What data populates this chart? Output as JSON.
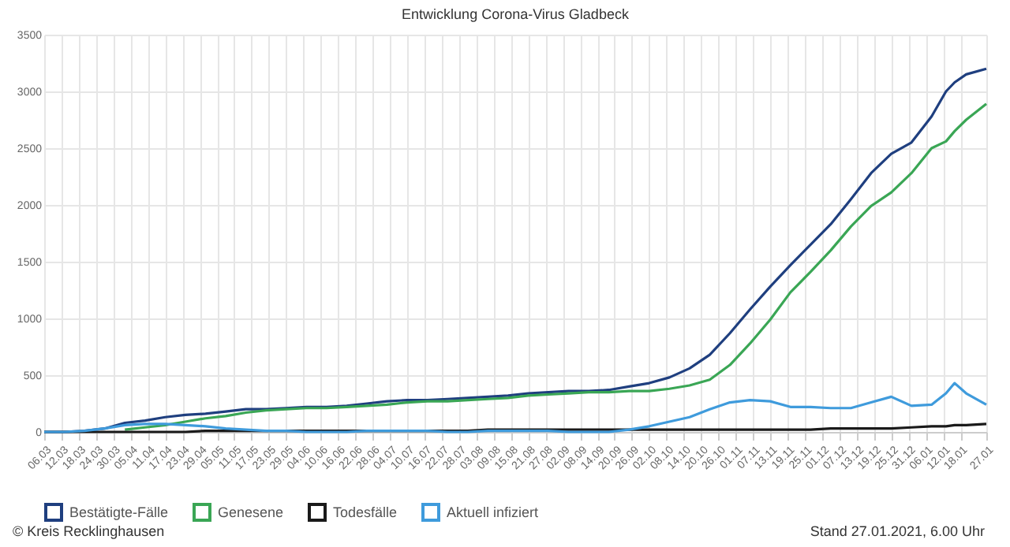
{
  "chart_data": {
    "type": "line",
    "title": "Entwicklung Corona-Virus Gladbeck",
    "annotations": [
      "© Kreis Recklinghausen",
      "Stand 27.01.2021, 6.00 Uhr"
    ],
    "x": [
      "2020-03-06",
      "2020-03-13",
      "2020-03-20",
      "2020-03-27",
      "2020-04-03",
      "2020-04-10",
      "2020-04-17",
      "2020-04-24",
      "2020-05-01",
      "2020-05-08",
      "2020-05-15",
      "2020-05-22",
      "2020-05-29",
      "2020-06-05",
      "2020-06-12",
      "2020-06-19",
      "2020-06-26",
      "2020-07-03",
      "2020-07-10",
      "2020-07-17",
      "2020-07-24",
      "2020-07-31",
      "2020-08-07",
      "2020-08-14",
      "2020-08-21",
      "2020-08-28",
      "2020-09-04",
      "2020-09-11",
      "2020-09-18",
      "2020-09-25",
      "2020-10-02",
      "2020-10-09",
      "2020-10-16",
      "2020-10-23",
      "2020-10-30",
      "2020-11-06",
      "2020-11-13",
      "2020-11-20",
      "2020-11-27",
      "2020-12-04",
      "2020-12-11",
      "2020-12-18",
      "2020-12-25",
      "2021-01-01",
      "2021-01-08",
      "2021-01-13",
      "2021-01-16",
      "2021-01-20",
      "2021-01-27"
    ],
    "series": [
      {
        "name": "Bestätigte-Fälle",
        "color": "#1f3f7f",
        "values": [
          0,
          0,
          10,
          30,
          80,
          100,
          130,
          150,
          160,
          180,
          200,
          200,
          210,
          220,
          220,
          230,
          250,
          270,
          280,
          280,
          290,
          300,
          310,
          320,
          340,
          350,
          360,
          360,
          370,
          400,
          430,
          480,
          560,
          680,
          870,
          1080,
          1280,
          1470,
          1650,
          1830,
          2050,
          2280,
          2450,
          2550,
          2780,
          3000,
          3080,
          3150,
          3200
        ]
      },
      {
        "name": "Genesene",
        "color": "#3aa655",
        "values": [
          null,
          null,
          null,
          null,
          20,
          40,
          60,
          90,
          120,
          140,
          170,
          190,
          200,
          210,
          210,
          220,
          230,
          240,
          260,
          270,
          270,
          280,
          290,
          300,
          320,
          330,
          340,
          350,
          350,
          360,
          360,
          380,
          410,
          460,
          590,
          780,
          990,
          1230,
          1410,
          1600,
          1810,
          1990,
          2110,
          2280,
          2500,
          2560,
          2650,
          2750,
          2890
        ]
      },
      {
        "name": "Todesfälle",
        "color": "#1a1a1a",
        "values": [
          0,
          0,
          0,
          0,
          0,
          0,
          0,
          0,
          10,
          10,
          10,
          10,
          10,
          10,
          10,
          10,
          10,
          10,
          10,
          10,
          10,
          10,
          20,
          20,
          20,
          20,
          20,
          20,
          20,
          20,
          20,
          20,
          20,
          20,
          20,
          20,
          20,
          20,
          20,
          30,
          30,
          30,
          30,
          40,
          50,
          50,
          60,
          60,
          70
        ]
      },
      {
        "name": "Aktuell infiziert",
        "color": "#3f9bdc",
        "values": [
          0,
          0,
          10,
          30,
          60,
          70,
          70,
          60,
          50,
          30,
          20,
          10,
          10,
          0,
          0,
          0,
          10,
          10,
          10,
          10,
          0,
          0,
          10,
          10,
          10,
          10,
          0,
          0,
          0,
          20,
          50,
          90,
          130,
          200,
          260,
          280,
          270,
          220,
          220,
          210,
          210,
          260,
          310,
          230,
          240,
          340,
          430,
          340,
          240
        ]
      }
    ],
    "xlim": [
      "2020-03-06",
      "2021-01-27"
    ],
    "xticks": [
      {
        "value": "2020-03-06",
        "label": "06.03"
      },
      {
        "value": "2020-03-12",
        "label": "12.03"
      },
      {
        "value": "2020-03-18",
        "label": "18.03"
      },
      {
        "value": "2020-03-24",
        "label": "24.03"
      },
      {
        "value": "2020-03-30",
        "label": "30.03"
      },
      {
        "value": "2020-04-05",
        "label": "05.04"
      },
      {
        "value": "2020-04-11",
        "label": "11.04"
      },
      {
        "value": "2020-04-17",
        "label": "17.04"
      },
      {
        "value": "2020-04-23",
        "label": "23.04"
      },
      {
        "value": "2020-04-29",
        "label": "29.04"
      },
      {
        "value": "2020-05-05",
        "label": "05.05"
      },
      {
        "value": "2020-05-11",
        "label": "11.05"
      },
      {
        "value": "2020-05-17",
        "label": "17.05"
      },
      {
        "value": "2020-05-23",
        "label": "23.05"
      },
      {
        "value": "2020-05-29",
        "label": "29.05"
      },
      {
        "value": "2020-06-04",
        "label": "04.06"
      },
      {
        "value": "2020-06-10",
        "label": "10.06"
      },
      {
        "value": "2020-06-16",
        "label": "16.06"
      },
      {
        "value": "2020-06-22",
        "label": "22.06"
      },
      {
        "value": "2020-06-28",
        "label": "28.06"
      },
      {
        "value": "2020-07-04",
        "label": "04.07"
      },
      {
        "value": "2020-07-10",
        "label": "10.07"
      },
      {
        "value": "2020-07-16",
        "label": "16.07"
      },
      {
        "value": "2020-07-22",
        "label": "22.07"
      },
      {
        "value": "2020-07-28",
        "label": "28.07"
      },
      {
        "value": "2020-08-03",
        "label": "03.08"
      },
      {
        "value": "2020-08-09",
        "label": "09.08"
      },
      {
        "value": "2020-08-15",
        "label": "15.08"
      },
      {
        "value": "2020-08-21",
        "label": "21.08"
      },
      {
        "value": "2020-08-27",
        "label": "27.08"
      },
      {
        "value": "2020-09-02",
        "label": "02.09"
      },
      {
        "value": "2020-09-08",
        "label": "08.09"
      },
      {
        "value": "2020-09-14",
        "label": "14.09"
      },
      {
        "value": "2020-09-20",
        "label": "20.09"
      },
      {
        "value": "2020-09-26",
        "label": "26.09"
      },
      {
        "value": "2020-10-02",
        "label": "02.10"
      },
      {
        "value": "2020-10-08",
        "label": "08.10"
      },
      {
        "value": "2020-10-14",
        "label": "14.10"
      },
      {
        "value": "2020-10-20",
        "label": "20.10"
      },
      {
        "value": "2020-10-26",
        "label": "26.10"
      },
      {
        "value": "2020-11-01",
        "label": "01.11"
      },
      {
        "value": "2020-11-07",
        "label": "07.11"
      },
      {
        "value": "2020-11-13",
        "label": "13.11"
      },
      {
        "value": "2020-11-19",
        "label": "19.11"
      },
      {
        "value": "2020-11-25",
        "label": "25.11"
      },
      {
        "value": "2020-12-01",
        "label": "01.12"
      },
      {
        "value": "2020-12-07",
        "label": "07.12"
      },
      {
        "value": "2020-12-13",
        "label": "13.12"
      },
      {
        "value": "2020-12-19",
        "label": "19.12"
      },
      {
        "value": "2020-12-25",
        "label": "25.12"
      },
      {
        "value": "2020-12-31",
        "label": "31.12"
      },
      {
        "value": "2021-01-06",
        "label": "06.01"
      },
      {
        "value": "2021-01-12",
        "label": "12.01"
      },
      {
        "value": "2021-01-18",
        "label": "18.01"
      },
      {
        "value": "2021-01-27",
        "label": "27.01"
      }
    ],
    "ylim": [
      0,
      3500
    ],
    "yticks": [
      0,
      500,
      1000,
      1500,
      2000,
      2500,
      3000,
      3500
    ],
    "grid": true,
    "legend": "bottom",
    "marker": "none",
    "line_style": "solid"
  }
}
